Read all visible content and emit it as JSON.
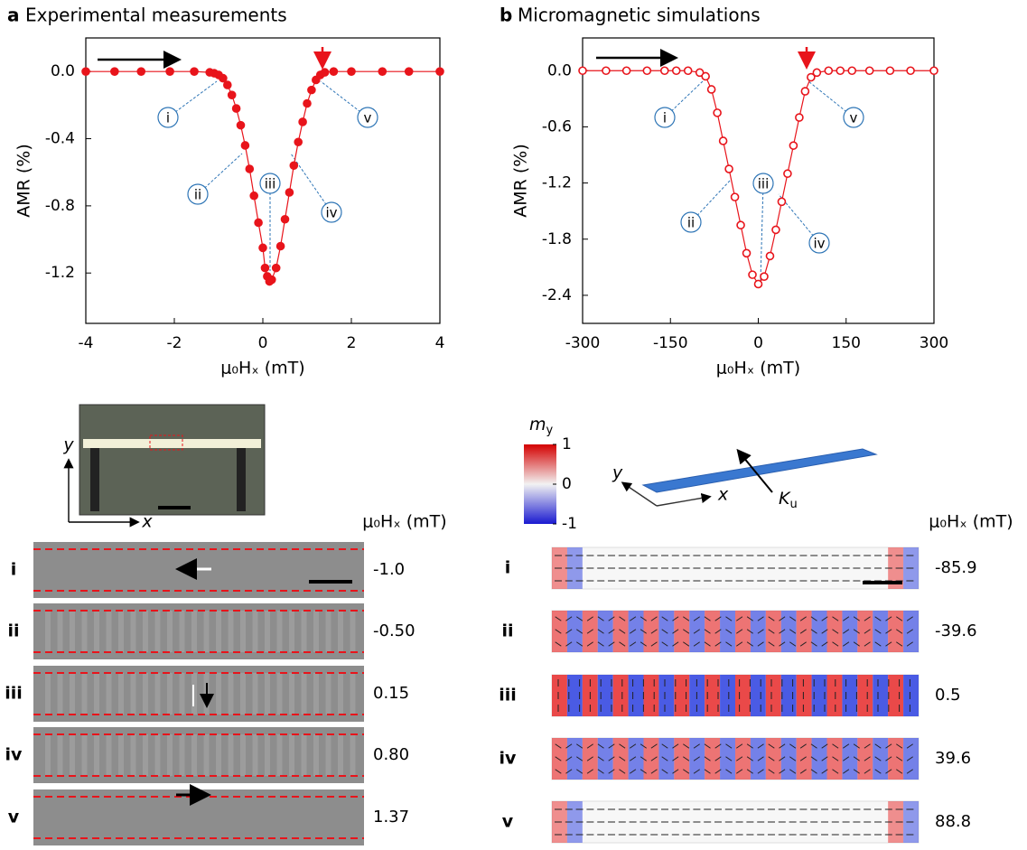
{
  "figure_panels": [
    {
      "letter": "a",
      "title": "Experimental measurements"
    },
    {
      "letter": "b",
      "title": "Micromagnetic simulations"
    }
  ],
  "chart_data": [
    {
      "type": "line",
      "xlabel": "μ₀Hₓ (mT)",
      "ylabel": "AMR (%)",
      "color": "#e8141b",
      "marker": "filled",
      "x": [
        -4,
        -3.35,
        -2.75,
        -2.1,
        -1.55,
        -1.2,
        -1.1,
        -1.0,
        -0.9,
        -0.8,
        -0.7,
        -0.6,
        -0.5,
        -0.4,
        -0.3,
        -0.2,
        -0.1,
        0.0,
        0.05,
        0.1,
        0.15,
        0.2,
        0.3,
        0.4,
        0.5,
        0.6,
        0.7,
        0.8,
        0.9,
        1.0,
        1.1,
        1.2,
        1.3,
        1.4,
        1.6,
        2.0,
        2.7,
        3.3,
        4
      ],
      "values": [
        0,
        0,
        0,
        0,
        0,
        -0.005,
        -0.01,
        -0.02,
        -0.04,
        -0.08,
        -0.14,
        -0.22,
        -0.32,
        -0.44,
        -0.58,
        -0.74,
        -0.9,
        -1.05,
        -1.17,
        -1.22,
        -1.25,
        -1.24,
        -1.17,
        -1.04,
        -0.88,
        -0.72,
        -0.56,
        -0.42,
        -0.3,
        -0.19,
        -0.11,
        -0.05,
        -0.02,
        -0.005,
        0,
        0,
        0,
        0,
        0
      ],
      "xlim": [
        -4,
        4
      ],
      "ylim": [
        -1.5,
        0.2
      ],
      "xticks": [
        -4,
        -2,
        0,
        2,
        4
      ],
      "yticks": [
        {
          "value": 0,
          "label": "0.0"
        },
        -0.4,
        -0.8,
        -1.2
      ],
      "annotations": [
        "i",
        "ii",
        "iii",
        "iv",
        "v"
      ]
    },
    {
      "type": "line",
      "xlabel": "μ₀Hₓ (mT)",
      "ylabel": "AMR (%)",
      "color": "#e8141b",
      "marker": "open",
      "x": [
        -300,
        -260,
        -225,
        -190,
        -160,
        -140,
        -120,
        -100,
        -90,
        -80,
        -70,
        -60,
        -50,
        -40,
        -30,
        -20,
        -10,
        0,
        10,
        20,
        30,
        40,
        50,
        60,
        70,
        80,
        90,
        100,
        120,
        140,
        160,
        190,
        225,
        260,
        300
      ],
      "values": [
        0,
        0,
        0,
        0,
        0,
        0,
        0,
        -0.02,
        -0.06,
        -0.2,
        -0.45,
        -0.75,
        -1.05,
        -1.35,
        -1.65,
        -1.95,
        -2.18,
        -2.28,
        -2.2,
        -1.98,
        -1.7,
        -1.4,
        -1.1,
        -0.8,
        -0.5,
        -0.22,
        -0.07,
        -0.02,
        0,
        0,
        0,
        0,
        0,
        0,
        0
      ],
      "xlim": [
        -300,
        300
      ],
      "ylim": [
        -2.7,
        0.35
      ],
      "xticks": [
        -300,
        -150,
        0,
        150,
        300
      ],
      "yticks": [
        {
          "value": 0,
          "label": "0.0"
        },
        -0.6,
        -1.2,
        -1.8,
        -2.4
      ],
      "annotations": [
        "i",
        "ii",
        "iii",
        "iv",
        "v"
      ]
    }
  ],
  "experiment": {
    "axis_x": "x",
    "axis_y": "y",
    "field_header": "μ₀Hₓ (mT)",
    "rows": [
      {
        "label": "i",
        "field": "-1.0"
      },
      {
        "label": "ii",
        "field": "-0.50"
      },
      {
        "label": "iii",
        "field": "0.15"
      },
      {
        "label": "iv",
        "field": "0.80"
      },
      {
        "label": "v",
        "field": "1.37"
      }
    ]
  },
  "simulation": {
    "colorbar_symbol": "m",
    "colorbar_sub": "y",
    "colorbar_ticks": [
      1,
      0,
      -1
    ],
    "axis_x": "x",
    "axis_y": "y",
    "anisotropy_symbol": "K",
    "anisotropy_sub": "u",
    "field_header": "μ₀Hₓ (mT)",
    "rows": [
      {
        "label": "i",
        "field": "-85.9"
      },
      {
        "label": "ii",
        "field": "-39.6"
      },
      {
        "label": "iii",
        "field": "0.5"
      },
      {
        "label": "iv",
        "field": "39.6"
      },
      {
        "label": "v",
        "field": "88.8"
      }
    ]
  }
}
